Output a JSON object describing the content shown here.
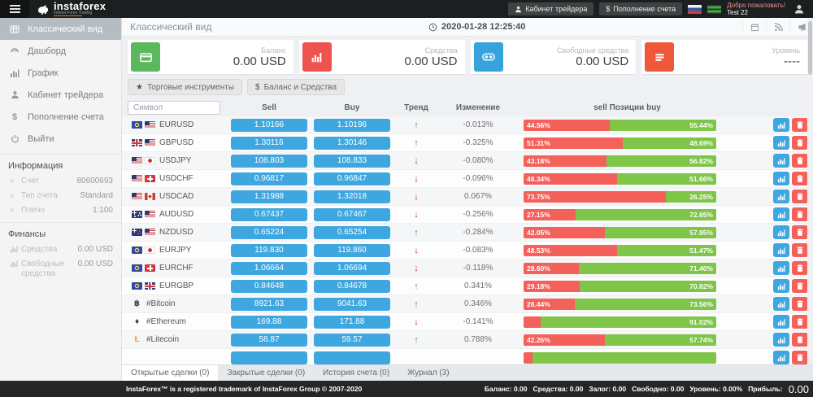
{
  "header": {
    "brand": "instaforex",
    "brand_tagline": "Instant Forex Trading",
    "trader_cabinet_label": "Кабинет трейдера",
    "deposit_label": "Пополнение счета",
    "deposit_prefix": "$",
    "welcome_line1": "Добро пожаловать!",
    "welcome_line2": "Test 22"
  },
  "sidebar": {
    "items": [
      {
        "name": "sidebar-item-classic-view",
        "icon": "table-icon",
        "label": "Классический вид",
        "active": true
      },
      {
        "name": "sidebar-item-dashboard",
        "icon": "gauge-icon",
        "label": "Дашборд",
        "active": false
      },
      {
        "name": "sidebar-item-chart",
        "icon": "chart-icon",
        "label": "График",
        "active": false
      },
      {
        "name": "sidebar-item-trader-cabinet",
        "icon": "person-icon",
        "label": "Кабинет трейдера",
        "active": false
      },
      {
        "name": "sidebar-item-deposit",
        "icon": "dollar-icon",
        "label": "Пополнение счета",
        "active": false
      },
      {
        "name": "sidebar-item-logout",
        "icon": "power-icon",
        "label": "Выйти",
        "active": false
      }
    ],
    "info_title": "Информация",
    "info_rows": [
      {
        "label": "Счет",
        "value": "80600693"
      },
      {
        "label": "Тип счета",
        "value": "Standard"
      },
      {
        "label": "Плечо",
        "value": "1:100"
      }
    ],
    "finance_title": "Финансы",
    "finance_rows": [
      {
        "label": "Средства",
        "value": "0.00 USD"
      },
      {
        "label": "Свободные средства",
        "value": "0.00 USD"
      }
    ]
  },
  "content_header": {
    "title": "Классический вид",
    "datetime": "2020-01-28 12:25:40"
  },
  "cards": [
    {
      "label": "Баланс",
      "value": "0.00 USD",
      "color": "#5cb85c",
      "icon": "credit-card-icon"
    },
    {
      "label": "Средства",
      "value": "0.00 USD",
      "color": "#ef5350",
      "icon": "bar-chart-icon"
    },
    {
      "label": "Свободные средства",
      "value": "0.00 USD",
      "color": "#36a3dc",
      "icon": "binoculars-icon"
    },
    {
      "label": "Уровень",
      "value": "----",
      "color": "#f0583b",
      "icon": "list-icon"
    }
  ],
  "toolbar": {
    "instruments_label": "Торговые инструменты",
    "balance_label": "Баланс и Средства",
    "instruments_icon": "★",
    "balance_icon": "$"
  },
  "table": {
    "symbol_placeholder": "Символ",
    "headers": {
      "sell": "Sell",
      "buy": "Buy",
      "trend": "Тренд",
      "change": "Изменение",
      "positions": "sell Позиции buy"
    },
    "rows": [
      {
        "symbol": "EURUSD",
        "flags": [
          "eu",
          "us"
        ],
        "sell": "1.10166",
        "buy": "1.10196",
        "trend": "up",
        "change": "-0.013%",
        "sell_pct": 44.56,
        "buy_pct": 55.44,
        "sell_label": "44.56%",
        "buy_label": "55.44%"
      },
      {
        "symbol": "GBPUSD",
        "flags": [
          "gb",
          "us"
        ],
        "sell": "1.30116",
        "buy": "1.30146",
        "trend": "up",
        "change": "-0.325%",
        "sell_pct": 51.31,
        "buy_pct": 48.69,
        "sell_label": "51.31%",
        "buy_label": "48.69%"
      },
      {
        "symbol": "USDJPY",
        "flags": [
          "us",
          "jp"
        ],
        "sell": "108.803",
        "buy": "108.833",
        "trend": "down",
        "change": "-0.080%",
        "sell_pct": 43.18,
        "buy_pct": 56.82,
        "sell_label": "43.18%",
        "buy_label": "56.82%"
      },
      {
        "symbol": "USDCHF",
        "flags": [
          "us",
          "ch"
        ],
        "sell": "0.96817",
        "buy": "0.96847",
        "trend": "down",
        "change": "-0.096%",
        "sell_pct": 48.34,
        "buy_pct": 51.66,
        "sell_label": "48.34%",
        "buy_label": "51.66%"
      },
      {
        "symbol": "USDCAD",
        "flags": [
          "us",
          "ca"
        ],
        "sell": "1.31988",
        "buy": "1.32018",
        "trend": "down",
        "change": "0.067%",
        "sell_pct": 73.75,
        "buy_pct": 26.25,
        "sell_label": "73.75%",
        "buy_label": "26.25%"
      },
      {
        "symbol": "AUDUSD",
        "flags": [
          "au",
          "us"
        ],
        "sell": "0.67437",
        "buy": "0.67467",
        "trend": "down",
        "change": "-0.256%",
        "sell_pct": 27.15,
        "buy_pct": 72.85,
        "sell_label": "27.15%",
        "buy_label": "72.85%"
      },
      {
        "symbol": "NZDUSD",
        "flags": [
          "nz",
          "us"
        ],
        "sell": "0.65224",
        "buy": "0.65254",
        "trend": "up",
        "change": "-0.284%",
        "sell_pct": 42.05,
        "buy_pct": 57.95,
        "sell_label": "42.05%",
        "buy_label": "57.95%"
      },
      {
        "symbol": "EURJPY",
        "flags": [
          "eu",
          "jp"
        ],
        "sell": "119.830",
        "buy": "119.860",
        "trend": "down",
        "change": "-0.083%",
        "sell_pct": 48.53,
        "buy_pct": 51.47,
        "sell_label": "48.53%",
        "buy_label": "51.47%"
      },
      {
        "symbol": "EURCHF",
        "flags": [
          "eu",
          "ch"
        ],
        "sell": "1.06664",
        "buy": "1.06694",
        "trend": "down",
        "change": "-0.118%",
        "sell_pct": 28.6,
        "buy_pct": 71.4,
        "sell_label": "28.60%",
        "buy_label": "71.40%"
      },
      {
        "symbol": "EURGBP",
        "flags": [
          "eu",
          "gb"
        ],
        "sell": "0.84648",
        "buy": "0.84678",
        "trend": "up",
        "change": "0.341%",
        "sell_pct": 29.18,
        "buy_pct": 70.82,
        "sell_label": "29.18%",
        "buy_label": "70.82%"
      },
      {
        "symbol": "#Bitcoin",
        "crypto": "btc",
        "crypto_glyph": "฿",
        "sell": "8921.63",
        "buy": "9041.63",
        "trend": "up",
        "change": "0.346%",
        "sell_pct": 26.44,
        "buy_pct": 73.56,
        "sell_label": "26.44%",
        "buy_label": "73.56%"
      },
      {
        "symbol": "#Ethereum",
        "crypto": "eth",
        "crypto_glyph": "♦",
        "sell": "169.88",
        "buy": "171.88",
        "trend": "down",
        "change": "-0.141%",
        "sell_pct": 8.98,
        "buy_pct": 91.02,
        "sell_label": "",
        "buy_label": "91.02%"
      },
      {
        "symbol": "#Litecoin",
        "crypto": "ltc",
        "crypto_glyph": "Ł",
        "sell": "58.87",
        "buy": "59.57",
        "trend": "up",
        "change": "0.788%",
        "sell_pct": 42.26,
        "buy_pct": 57.74,
        "sell_label": "42.26%",
        "buy_label": "57.74%"
      },
      {
        "symbol": "",
        "flags": [],
        "sell": "",
        "buy": "",
        "trend": "",
        "change": "",
        "sell_pct": 4.5,
        "buy_pct": 95.5,
        "sell_label": "",
        "buy_label": "",
        "partial": true
      }
    ]
  },
  "tabs": [
    {
      "name": "tab-open-trades",
      "label": "Открытые сделки (0)",
      "active": true
    },
    {
      "name": "tab-closed-trades",
      "label": "Закрытые сделки (0)",
      "active": false
    },
    {
      "name": "tab-account-history",
      "label": "История счета (0)",
      "active": false
    },
    {
      "name": "tab-journal",
      "label": "Журнал (3)",
      "active": false
    }
  ],
  "footer": {
    "left": "InstaForex™ is a registered trademark of InstaForex Group © 2007-2020",
    "stats": [
      {
        "label": "Баланс:",
        "value": "0.00"
      },
      {
        "label": "Средства:",
        "value": "0.00"
      },
      {
        "label": "Залог:",
        "value": "0.00"
      },
      {
        "label": "Свободно:",
        "value": "0.00"
      },
      {
        "label": "Уровень:",
        "value": "0.00%"
      }
    ],
    "profit_label": "Прибыль:",
    "profit_value": "0.00"
  },
  "colors": {
    "accent_blue": "#3fa7df",
    "bar_red": "#f4605a",
    "bar_green": "#7ec548",
    "trend_up": "#3d9b35",
    "trend_down": "#b03a2e",
    "topbar_bg": "#1c1f1f",
    "footer_bg": "#262626"
  }
}
